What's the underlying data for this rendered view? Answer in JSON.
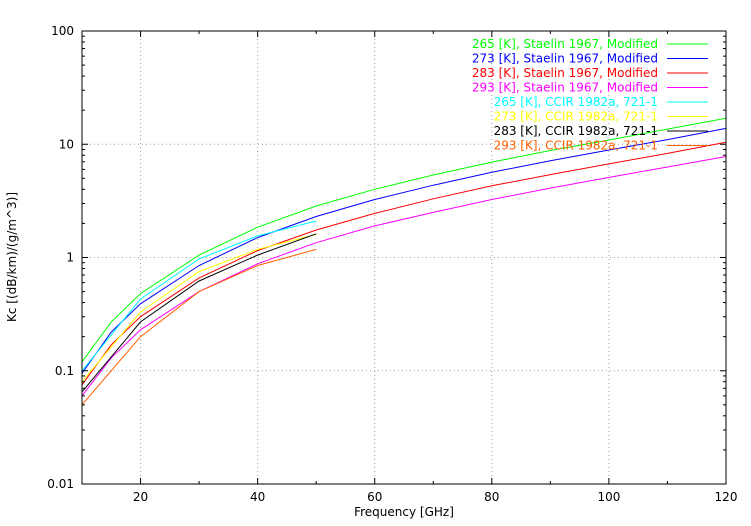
{
  "chart_data": {
    "type": "line",
    "xlabel": "Frequency [GHz]",
    "ylabel": "Kc [(dB/km)/(g/m^3)]",
    "xlim": [
      10,
      120
    ],
    "ylim": [
      0.01,
      100
    ],
    "yscale": "log",
    "grid": true,
    "legend_position": "top-right",
    "x_ticks": [
      "20",
      "40",
      "60",
      "80",
      "100",
      "120"
    ],
    "y_ticks": [
      "0.01",
      "0.1",
      "1",
      "10",
      "100"
    ],
    "series": [
      {
        "name": "265 [K], Staelin 1967, Modified",
        "color": "#00ff00",
        "x": [
          10,
          15,
          20,
          30,
          40,
          50,
          60,
          70,
          80,
          90,
          100,
          110,
          120
        ],
        "y": [
          0.12,
          0.27,
          0.48,
          1.05,
          1.85,
          2.85,
          4.0,
          5.35,
          6.95,
          8.8,
          10.9,
          13.6,
          17.0
        ]
      },
      {
        "name": "273 [K], Staelin 1967, Modified",
        "color": "#0000ff",
        "x": [
          10,
          15,
          20,
          30,
          40,
          50,
          60,
          70,
          80,
          90,
          100,
          110,
          120
        ],
        "y": [
          0.095,
          0.22,
          0.39,
          0.85,
          1.5,
          2.3,
          3.25,
          4.35,
          5.65,
          7.15,
          8.9,
          11.0,
          13.8
        ]
      },
      {
        "name": "283 [K], Staelin 1967, Modified",
        "color": "#ff0000",
        "x": [
          10,
          15,
          20,
          30,
          40,
          50,
          60,
          70,
          80,
          90,
          100,
          110,
          120
        ],
        "y": [
          0.075,
          0.17,
          0.3,
          0.66,
          1.15,
          1.75,
          2.45,
          3.3,
          4.3,
          5.4,
          6.7,
          8.3,
          10.4
        ]
      },
      {
        "name": "293 [K], Staelin 1967, Modified",
        "color": "#ff00ff",
        "x": [
          10,
          15,
          20,
          30,
          40,
          50,
          60,
          70,
          80,
          90,
          100,
          110,
          120
        ],
        "y": [
          0.06,
          0.13,
          0.23,
          0.5,
          0.88,
          1.35,
          1.9,
          2.5,
          3.25,
          4.1,
          5.1,
          6.3,
          7.8
        ]
      },
      {
        "name": "265 [K], CCIR 1982a, 721-1",
        "color": "#00ffff",
        "x": [
          10,
          20,
          30,
          40,
          50
        ],
        "y": [
          0.1,
          0.43,
          0.97,
          1.55,
          2.1
        ]
      },
      {
        "name": "273 [K], CCIR 1982a, 721-1",
        "color": "#ffff00",
        "x": [
          10,
          20,
          30,
          40,
          50
        ],
        "y": [
          0.08,
          0.33,
          0.75,
          1.18,
          1.6
        ]
      },
      {
        "name": "283 [K], CCIR 1982a, 721-1",
        "color": "#000000",
        "x": [
          10,
          20,
          30,
          40,
          50
        ],
        "y": [
          0.065,
          0.27,
          0.62,
          1.05,
          1.62
        ]
      },
      {
        "name": "293 [K], CCIR 1982a, 721-1",
        "color": "#ff6000",
        "x": [
          10,
          20,
          30,
          40,
          50
        ],
        "y": [
          0.05,
          0.2,
          0.5,
          0.85,
          1.18
        ]
      }
    ]
  }
}
